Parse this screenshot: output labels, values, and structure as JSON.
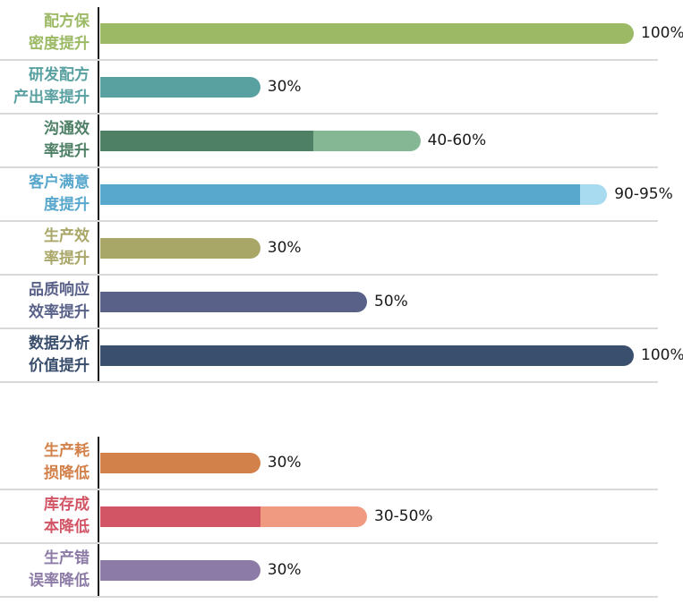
{
  "colors": {
    "background": "#FFFFFF",
    "axis_line": "#1A1A1A",
    "row_separator": "#D9D9D9",
    "value_text": "#1A1A1A"
  },
  "chart_data": [
    {
      "type": "bar",
      "orientation": "horizontal",
      "group": "group-1-improvements",
      "unit": "%",
      "xlim": [
        0,
        100
      ],
      "grid": false,
      "legend": false,
      "bars": [
        {
          "category": "配方保\n密度提升",
          "value_label": "100%",
          "values": [
            100
          ],
          "label_color": "#9CBA66",
          "segments": [
            {
              "span_pct": 100,
              "color": "#9CBA66"
            }
          ]
        },
        {
          "category": "研发配方\n产出率提升",
          "value_label": "30%",
          "values": [
            30
          ],
          "label_color": "#59A0A1",
          "segments": [
            {
              "span_pct": 30,
              "color": "#59A0A1"
            }
          ]
        },
        {
          "category": "沟通效\n率提升",
          "value_label": "40-60%",
          "values": [
            40,
            60
          ],
          "label_color": "#4E8066",
          "segments": [
            {
              "span_pct": 40,
              "color": "#4E8066"
            },
            {
              "span_pct": 20,
              "color": "#86B795"
            }
          ]
        },
        {
          "category": "客户满意\n度提升",
          "value_label": "90-95%",
          "values": [
            90,
            95
          ],
          "label_color": "#58A7CC",
          "segments": [
            {
              "span_pct": 90,
              "color": "#58A7CC"
            },
            {
              "span_pct": 5,
              "color": "#A8DAF0"
            }
          ]
        },
        {
          "category": "生产效\n率提升",
          "value_label": "30%",
          "values": [
            30
          ],
          "label_color": "#A9A768",
          "segments": [
            {
              "span_pct": 30,
              "color": "#A9A768"
            }
          ]
        },
        {
          "category": "品质响应\n效率提升",
          "value_label": "50%",
          "values": [
            50
          ],
          "label_color": "#5A6189",
          "segments": [
            {
              "span_pct": 50,
              "color": "#5A6189"
            }
          ]
        },
        {
          "category": "数据分析\n价值提升",
          "value_label": "100%",
          "values": [
            100
          ],
          "label_color": "#3A4E6D",
          "segments": [
            {
              "span_pct": 100,
              "color": "#3A4E6D"
            }
          ]
        }
      ]
    },
    {
      "type": "bar",
      "orientation": "horizontal",
      "group": "group-2-reductions",
      "unit": "%",
      "xlim": [
        0,
        100
      ],
      "grid": false,
      "legend": false,
      "bars": [
        {
          "category": "生产耗\n损降低",
          "value_label": "30%",
          "values": [
            30
          ],
          "label_color": "#D2814A",
          "segments": [
            {
              "span_pct": 30,
              "color": "#D2814A"
            }
          ]
        },
        {
          "category": "库存成\n本降低",
          "value_label": "30-50%",
          "values": [
            30,
            50
          ],
          "label_color": "#D15565",
          "segments": [
            {
              "span_pct": 30,
              "color": "#D15565"
            },
            {
              "span_pct": 20,
              "color": "#F09B81"
            }
          ]
        },
        {
          "category": "生产错\n误率降低",
          "value_label": "30%",
          "values": [
            30
          ],
          "label_color": "#8C7BA6",
          "segments": [
            {
              "span_pct": 30,
              "color": "#8C7BA6"
            }
          ]
        }
      ]
    }
  ]
}
